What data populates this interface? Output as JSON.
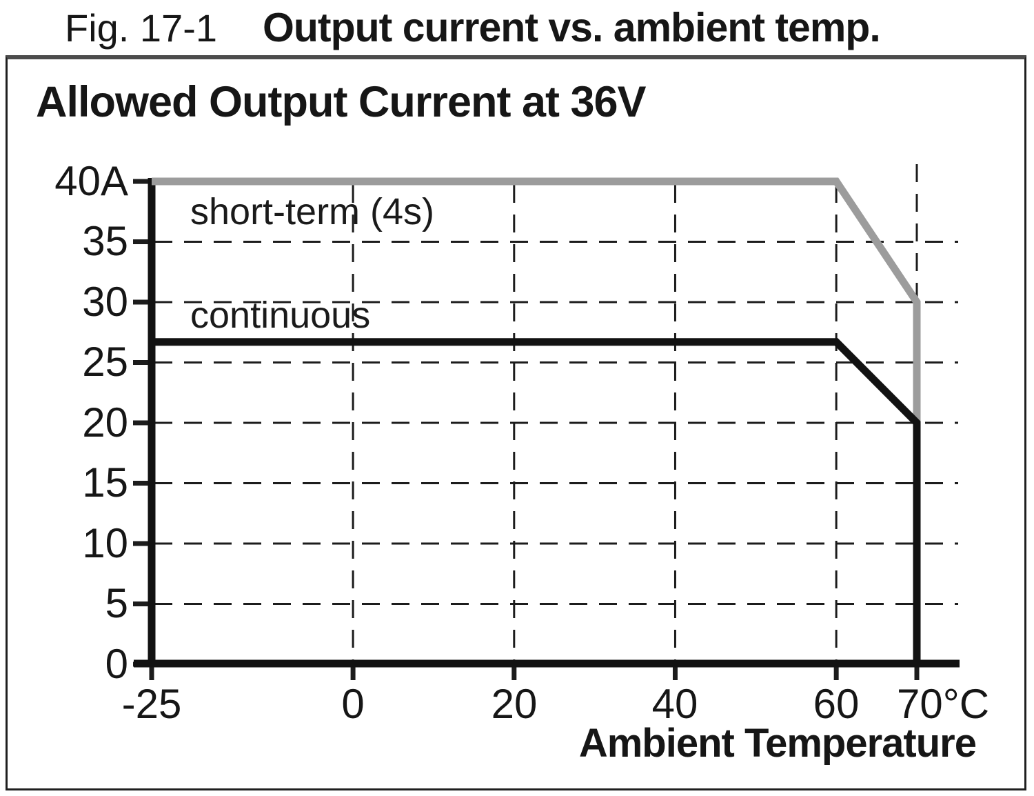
{
  "figure": {
    "caption_prefix": "Fig. 17-1",
    "caption_title": "Output current vs. ambient temp."
  },
  "panel": {
    "title": "Allowed Output Current at 36V"
  },
  "chart_data": {
    "type": "line",
    "title": "Allowed Output Current at 36V",
    "xlabel": "Ambient Temperature",
    "ylabel": "",
    "x_unit": "°C",
    "y_unit": "A",
    "xlim": [
      -25,
      70
    ],
    "ylim": [
      0,
      40
    ],
    "grid": {
      "style": "dashed",
      "horizontal_values": [
        5,
        10,
        15,
        20,
        25,
        30,
        35
      ],
      "vertical_values": [
        0,
        20,
        40,
        60,
        70
      ]
    },
    "series": [
      {
        "name": "short-term (4s)",
        "color": "#9c9c9c",
        "points": [
          [
            -25,
            40
          ],
          [
            60,
            40
          ],
          [
            70,
            30
          ],
          [
            70,
            0
          ]
        ]
      },
      {
        "name": "continuous",
        "color": "#121212",
        "points": [
          [
            -25,
            26.7
          ],
          [
            60,
            26.7
          ],
          [
            70,
            20
          ],
          [
            70,
            0
          ]
        ]
      }
    ],
    "y_ticks": [
      {
        "value": 40,
        "label": "40A"
      },
      {
        "value": 35,
        "label": "35"
      },
      {
        "value": 30,
        "label": "30"
      },
      {
        "value": 25,
        "label": "25"
      },
      {
        "value": 20,
        "label": "20"
      },
      {
        "value": 15,
        "label": "15"
      },
      {
        "value": 10,
        "label": "10"
      },
      {
        "value": 5,
        "label": "5"
      },
      {
        "value": 0,
        "label": "0"
      }
    ],
    "x_ticks": [
      {
        "value": -25,
        "label": "-25"
      },
      {
        "value": 0,
        "label": "0"
      },
      {
        "value": 20,
        "label": "20"
      },
      {
        "value": 40,
        "label": "40"
      },
      {
        "value": 60,
        "label": "60"
      },
      {
        "value": 70,
        "label": "70°C"
      }
    ],
    "legend": "inline-labels"
  }
}
